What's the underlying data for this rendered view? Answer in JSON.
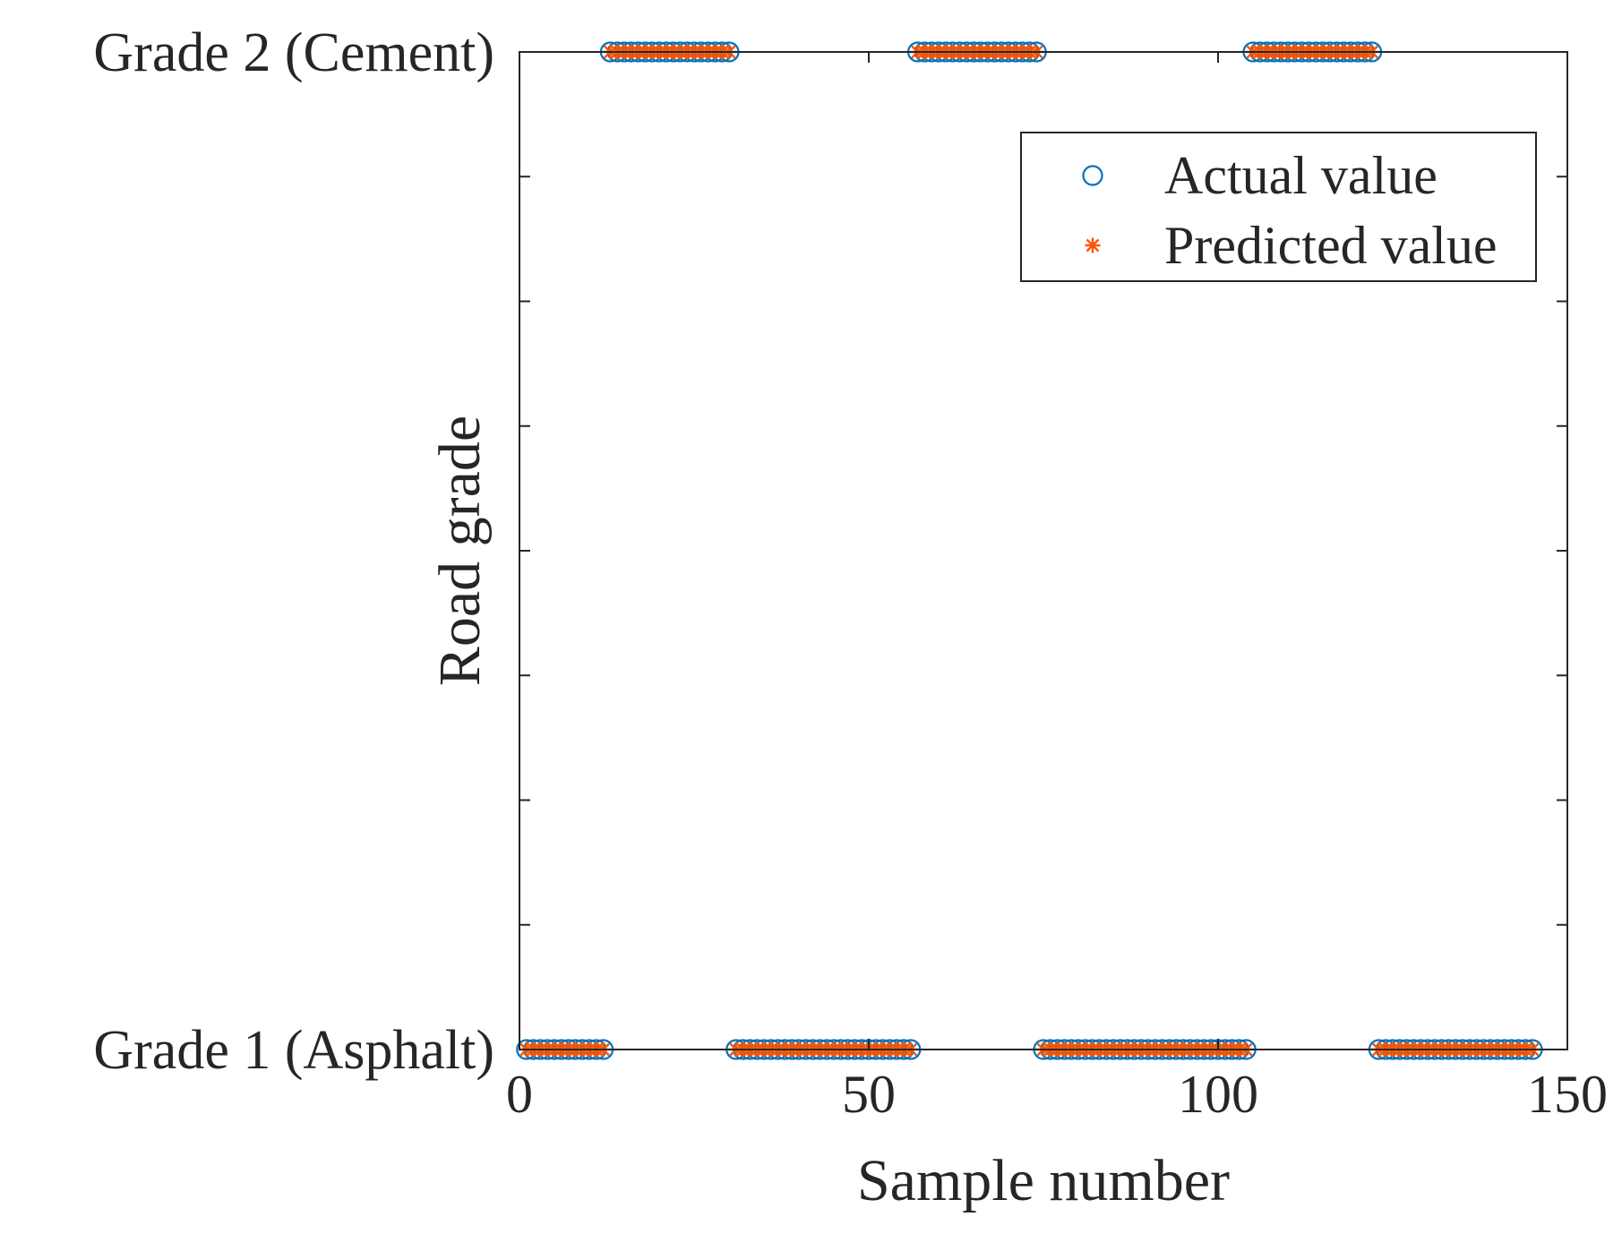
{
  "chart_data": {
    "type": "scatter",
    "title": "",
    "xlabel": "Sample number",
    "ylabel": "Road grade",
    "xlim": [
      0,
      150
    ],
    "ylim": [
      1,
      2
    ],
    "xticks": [
      0,
      50,
      100,
      150
    ],
    "xtick_labels": [
      "0",
      "50",
      "100",
      "150"
    ],
    "yticks": [
      1,
      2
    ],
    "ytick_labels": [
      "Grade 1 (Asphalt)",
      "Grade 2 (Cement)"
    ],
    "legend_position": "top-right",
    "grid": false,
    "series": [
      {
        "name": "Actual value",
        "marker": "circle",
        "color": "#0072BD",
        "segments": [
          {
            "x_start": 1,
            "x_end": 13,
            "y": 1
          },
          {
            "x_start": 13,
            "x_end": 31,
            "y": 2
          },
          {
            "x_start": 31,
            "x_end": 57,
            "y": 1
          },
          {
            "x_start": 57,
            "x_end": 75,
            "y": 2
          },
          {
            "x_start": 75,
            "x_end": 105,
            "y": 1
          },
          {
            "x_start": 105,
            "x_end": 123,
            "y": 2
          },
          {
            "x_start": 123,
            "x_end": 146,
            "y": 1
          }
        ]
      },
      {
        "name": "Predicted value",
        "marker": "asterisk",
        "color": "#FF5500",
        "segments": [
          {
            "x_start": 1,
            "x_end": 13,
            "y": 1
          },
          {
            "x_start": 13,
            "x_end": 31,
            "y": 2
          },
          {
            "x_start": 31,
            "x_end": 57,
            "y": 1
          },
          {
            "x_start": 57,
            "x_end": 75,
            "y": 2
          },
          {
            "x_start": 75,
            "x_end": 105,
            "y": 1
          },
          {
            "x_start": 105,
            "x_end": 123,
            "y": 2
          },
          {
            "x_start": 123,
            "x_end": 146,
            "y": 1
          }
        ]
      }
    ]
  }
}
